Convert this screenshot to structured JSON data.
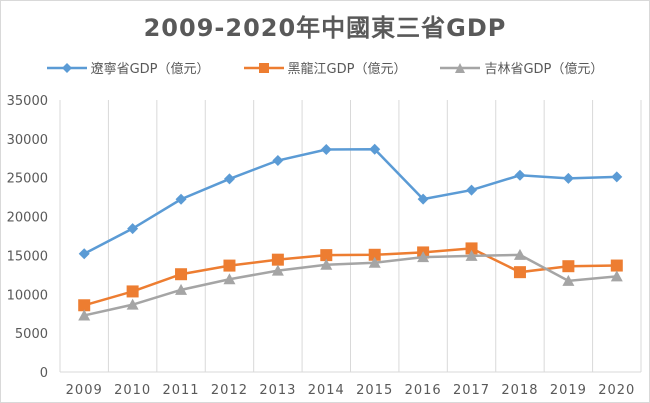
{
  "chart_data": {
    "type": "line",
    "title": "2009-2020年中國東三省GDP",
    "xlabel": "",
    "ylabel": "",
    "categories": [
      "2009",
      "2010",
      "2011",
      "2012",
      "2013",
      "2014",
      "2015",
      "2016",
      "2017",
      "2018",
      "2019",
      "2020"
    ],
    "ylim": [
      0,
      35000
    ],
    "yticks": [
      0,
      5000,
      10000,
      15000,
      20000,
      25000,
      30000,
      35000
    ],
    "grid": "vertical",
    "legend_position": "top",
    "series": [
      {
        "name": "遼寧省GDP（億元）",
        "color": "#5b9bd5",
        "marker": "diamond",
        "values": [
          15212,
          18457,
          22226,
          24846,
          27213,
          28626,
          28669,
          22246,
          23409,
          25315,
          24909,
          25115
        ]
      },
      {
        "name": "黑龍江GDP（億元）",
        "color": "#ed7d31",
        "marker": "square",
        "values": [
          8587,
          10368,
          12582,
          13692,
          14454,
          15039,
          15083,
          15386,
          15903,
          12846,
          13613,
          13698
        ]
      },
      {
        "name": "吉林省GDP（億元）",
        "color": "#a5a5a5",
        "marker": "triangle",
        "values": [
          7278,
          8667,
          10569,
          11939,
          13046,
          13803,
          14063,
          14777,
          14945,
          15075,
          11727,
          12311
        ]
      }
    ]
  }
}
